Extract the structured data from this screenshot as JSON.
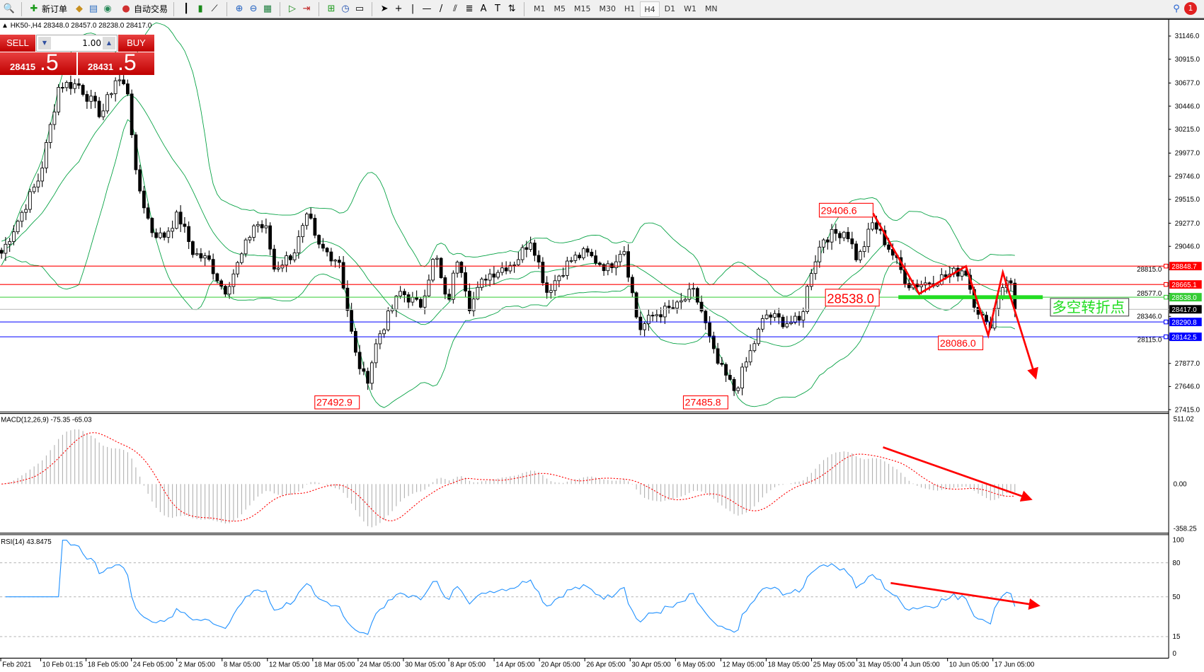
{
  "toolbar": {
    "new_order": "新订单",
    "auto_trading": "自动交易",
    "timeframes": [
      "M1",
      "M5",
      "M15",
      "M30",
      "H1",
      "H4",
      "D1",
      "W1",
      "MN"
    ],
    "active_timeframe": "H4",
    "alert_count": "1"
  },
  "chart": {
    "header": "HK50-,H4  28348.0 28457.0 28238.0 28417.0",
    "sell_label": "SELL",
    "buy_label": "BUY",
    "lot": "1.00",
    "sell_price_main": "28415",
    "sell_price_frac": ".5",
    "buy_price_main": "28431",
    "buy_price_frac": ".5",
    "price_ticks": [
      "31146.0",
      "30915.0",
      "30677.0",
      "30446.0",
      "30215.0",
      "29977.0",
      "29746.0",
      "29515.0",
      "29277.0",
      "29046.0",
      "28815.0",
      "28577.0",
      "28346.0",
      "28115.0",
      "27877.0",
      "27646.0",
      "27415.0"
    ],
    "levels": [
      {
        "price": 28848.7,
        "label": "28848.7",
        "color": "#ff0000"
      },
      {
        "price": 28665.1,
        "label": "28665.1",
        "color": "#ff0000"
      },
      {
        "price": 28538.0,
        "label": "28538.0",
        "color": "#33cc33"
      },
      {
        "price": 28417.0,
        "label": "28417.0",
        "color": "#000000"
      },
      {
        "price": 28290.8,
        "label": "28290.8",
        "color": "#0000ff"
      },
      {
        "price": 28142.5,
        "label": "28142.5",
        "color": "#0000ff"
      }
    ],
    "annotations": [
      "29406.6",
      "28538.0",
      "28086.0",
      "27492.9",
      "27485.8"
    ],
    "pivot_text": "多空转折点",
    "price_path": [
      [
        0,
        28978
      ],
      [
        20,
        29285
      ],
      [
        50,
        29744
      ],
      [
        75,
        30663
      ],
      [
        100,
        30663
      ],
      [
        130,
        30357
      ],
      [
        150,
        30740
      ],
      [
        165,
        30587
      ],
      [
        175,
        29744
      ],
      [
        195,
        29208
      ],
      [
        210,
        29131
      ],
      [
        230,
        29361
      ],
      [
        250,
        28978
      ],
      [
        270,
        28902
      ],
      [
        290,
        28595
      ],
      [
        310,
        28902
      ],
      [
        330,
        29285
      ],
      [
        345,
        29208
      ],
      [
        355,
        28825
      ],
      [
        380,
        28978
      ],
      [
        400,
        29361
      ],
      [
        410,
        29055
      ],
      [
        440,
        28902
      ],
      [
        460,
        27982
      ],
      [
        475,
        27676
      ],
      [
        490,
        28136
      ],
      [
        520,
        28595
      ],
      [
        545,
        28442
      ],
      [
        565,
        28978
      ],
      [
        580,
        28442
      ],
      [
        595,
        28978
      ],
      [
        610,
        28442
      ],
      [
        630,
        28748
      ],
      [
        650,
        28825
      ],
      [
        670,
        28902
      ],
      [
        690,
        29131
      ],
      [
        710,
        28595
      ],
      [
        740,
        28902
      ],
      [
        760,
        28978
      ],
      [
        790,
        28825
      ],
      [
        810,
        29055
      ],
      [
        830,
        28212
      ],
      [
        850,
        28365
      ],
      [
        880,
        28442
      ],
      [
        900,
        28595
      ],
      [
        910,
        28442
      ],
      [
        930,
        27907
      ],
      [
        955,
        27600
      ],
      [
        975,
        27982
      ],
      [
        995,
        28365
      ],
      [
        1020,
        28289
      ],
      [
        1040,
        28289
      ],
      [
        1055,
        28825
      ],
      [
        1070,
        29131
      ],
      [
        1100,
        29208
      ],
      [
        1115,
        28902
      ],
      [
        1135,
        29285
      ],
      [
        1160,
        28978
      ],
      [
        1180,
        28672
      ],
      [
        1200,
        28672
      ],
      [
        1230,
        28748
      ],
      [
        1255,
        28825
      ],
      [
        1265,
        28519
      ],
      [
        1285,
        28212
      ],
      [
        1300,
        28595
      ],
      [
        1310,
        28748
      ],
      [
        1325,
        28417
      ]
    ],
    "date_labels": [
      "Feb 2021",
      "10 Feb 01:15",
      "18 Feb 05:00",
      "24 Feb 05:00",
      "2 Mar 05:00",
      "8 Mar 05:00",
      "12 Mar 05:00",
      "18 Mar 05:00",
      "24 Mar 05:00",
      "30 Mar 05:00",
      "8 Apr 05:00",
      "14 Apr 05:00",
      "20 Apr 05:00",
      "26 Apr 05:00",
      "30 Apr 05:00",
      "6 May 05:00",
      "12 May 05:00",
      "18 May 05:00",
      "25 May 05:00",
      "31 May 05:00",
      "4 Jun 05:00",
      "10 Jun 05:00",
      "17 Jun 05:00"
    ]
  },
  "macd": {
    "label": "MACD(12,26,9) -75.35 -65.03",
    "ticks": [
      "511.02",
      "0.00",
      "-358.25"
    ]
  },
  "rsi": {
    "label": "RSI(14) 43.8475",
    "ticks": [
      "100",
      "80",
      "50",
      "15",
      "0"
    ]
  },
  "colors": {
    "bull_bear": "#000000",
    "bands": "#00a040",
    "signal": "#ff0000",
    "rsi": "#1e90ff",
    "arrows": "#ff0000"
  }
}
